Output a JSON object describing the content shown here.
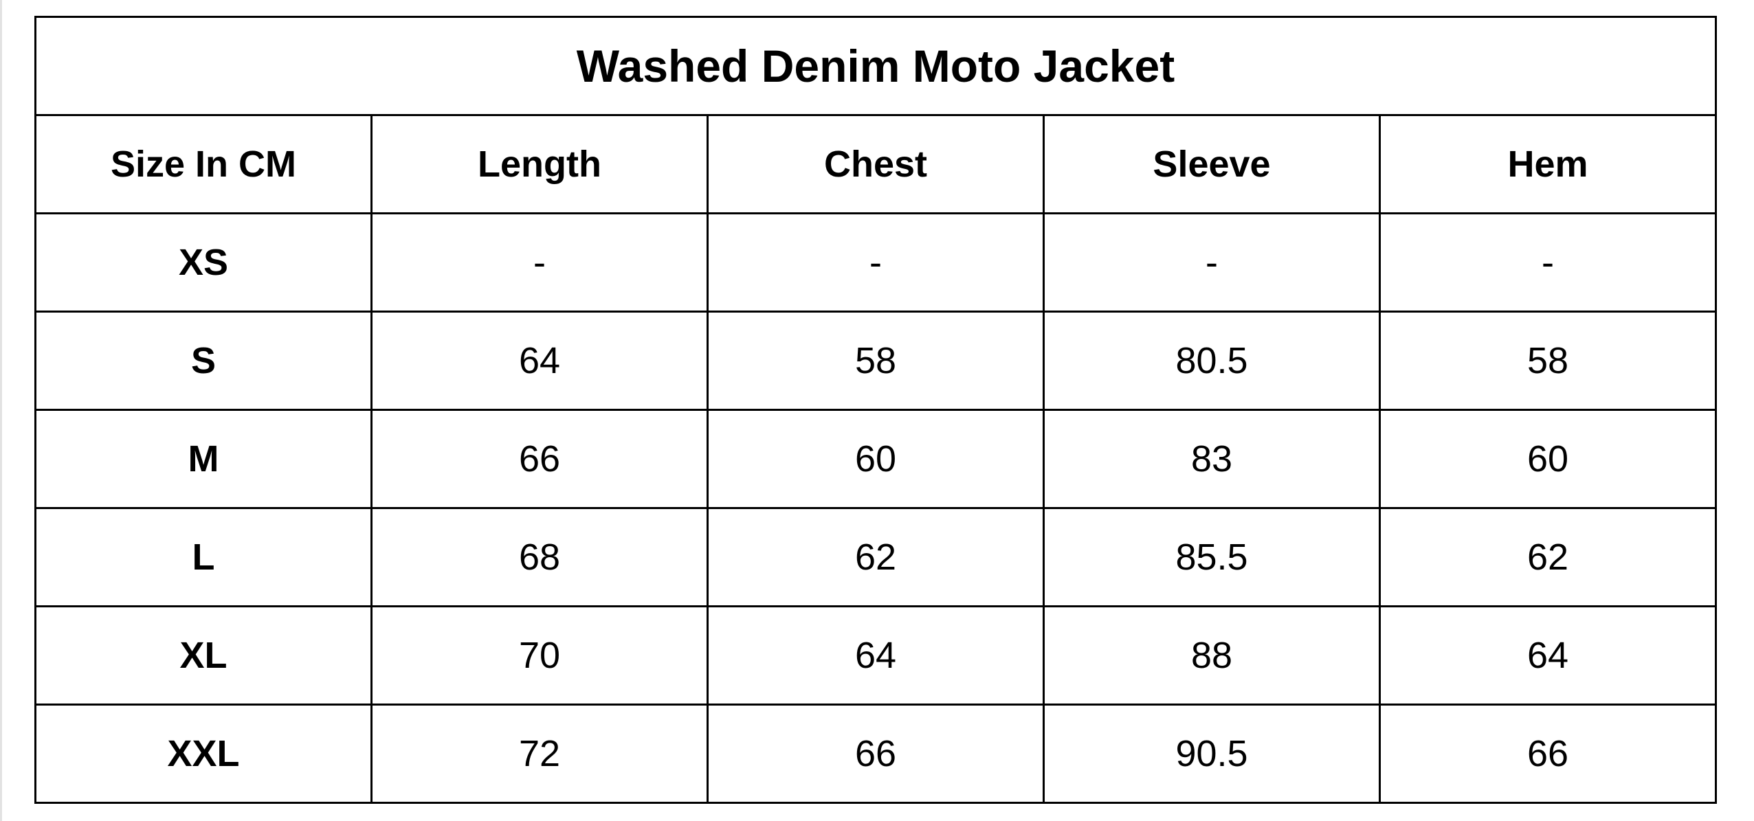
{
  "table": {
    "title": "Washed Denim Moto Jacket",
    "header": [
      "Size In CM",
      "Length",
      "Chest",
      "Sleeve",
      "Hem"
    ],
    "rows": [
      [
        "XS",
        "-",
        "-",
        "-",
        "-"
      ],
      [
        "S",
        64,
        58,
        80.5,
        58
      ],
      [
        "M",
        66,
        60,
        83,
        60
      ],
      [
        "L",
        68,
        62,
        85.5,
        62
      ],
      [
        "XL",
        70,
        64,
        88,
        64
      ],
      [
        "XXL",
        72,
        66,
        90.5,
        66
      ]
    ]
  }
}
